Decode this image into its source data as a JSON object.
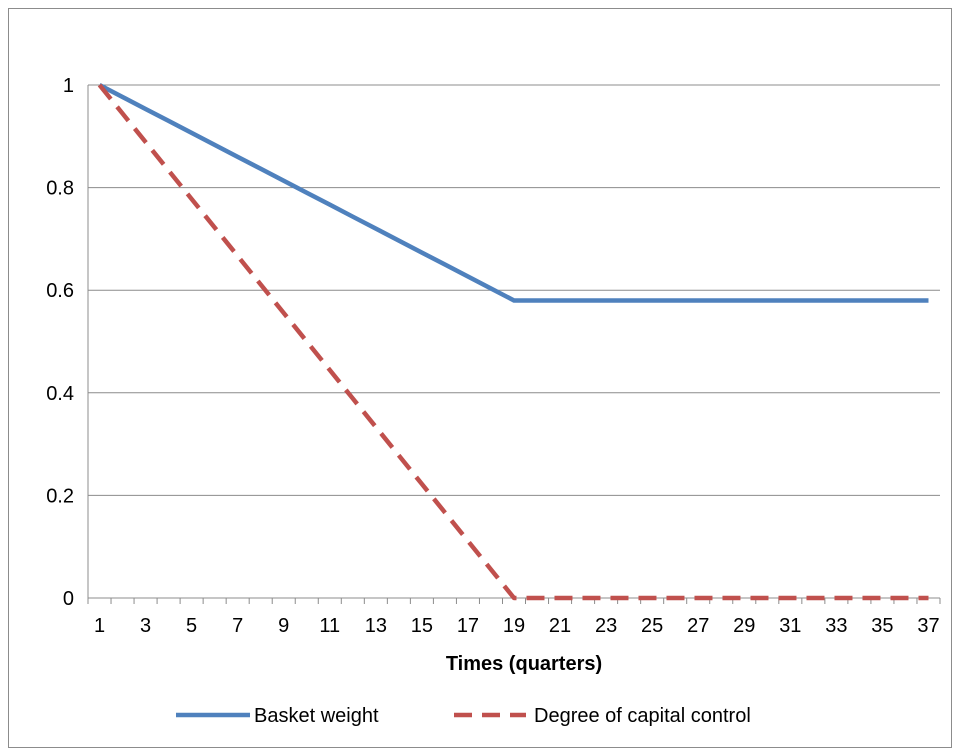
{
  "chart_data": {
    "type": "line",
    "title": "",
    "xlabel": "Times (quarters)",
    "ylabel": "",
    "x": [
      1,
      2,
      3,
      4,
      5,
      6,
      7,
      8,
      9,
      10,
      11,
      12,
      13,
      14,
      15,
      16,
      17,
      18,
      19,
      20,
      21,
      22,
      23,
      24,
      25,
      26,
      27,
      28,
      29,
      30,
      31,
      32,
      33,
      34,
      35,
      36,
      37
    ],
    "x_tick_labels": [
      "1",
      "3",
      "5",
      "7",
      "9",
      "11",
      "13",
      "15",
      "17",
      "19",
      "21",
      "23",
      "25",
      "27",
      "29",
      "31",
      "33",
      "35",
      "37"
    ],
    "y_tick_labels": [
      "0",
      "0.2",
      "0.4",
      "0.6",
      "0.8",
      "1"
    ],
    "ylim": [
      0,
      1
    ],
    "grid": "horizontal",
    "legend_position": "bottom",
    "series": [
      {
        "name": "Basket weight",
        "color": "#4f81bd",
        "style": "solid",
        "values": [
          1,
          0.9767,
          0.9533,
          0.93,
          0.9067,
          0.8833,
          0.86,
          0.8367,
          0.8133,
          0.79,
          0.7667,
          0.7433,
          0.72,
          0.6967,
          0.6733,
          0.65,
          0.6267,
          0.6033,
          0.58,
          0.58,
          0.58,
          0.58,
          0.58,
          0.58,
          0.58,
          0.58,
          0.58,
          0.58,
          0.58,
          0.58,
          0.58,
          0.58,
          0.58,
          0.58,
          0.58,
          0.58,
          0.58
        ]
      },
      {
        "name": "Degree of capital control",
        "color": "#c0504d",
        "style": "dashed",
        "values": [
          1,
          0.9444,
          0.8889,
          0.8333,
          0.7778,
          0.7222,
          0.6667,
          0.6111,
          0.5556,
          0.5,
          0.4444,
          0.3889,
          0.3333,
          0.2778,
          0.2222,
          0.1667,
          0.1111,
          0.0556,
          0,
          0,
          0,
          0,
          0,
          0,
          0,
          0,
          0,
          0,
          0,
          0,
          0,
          0,
          0,
          0,
          0,
          0,
          0
        ]
      }
    ]
  }
}
